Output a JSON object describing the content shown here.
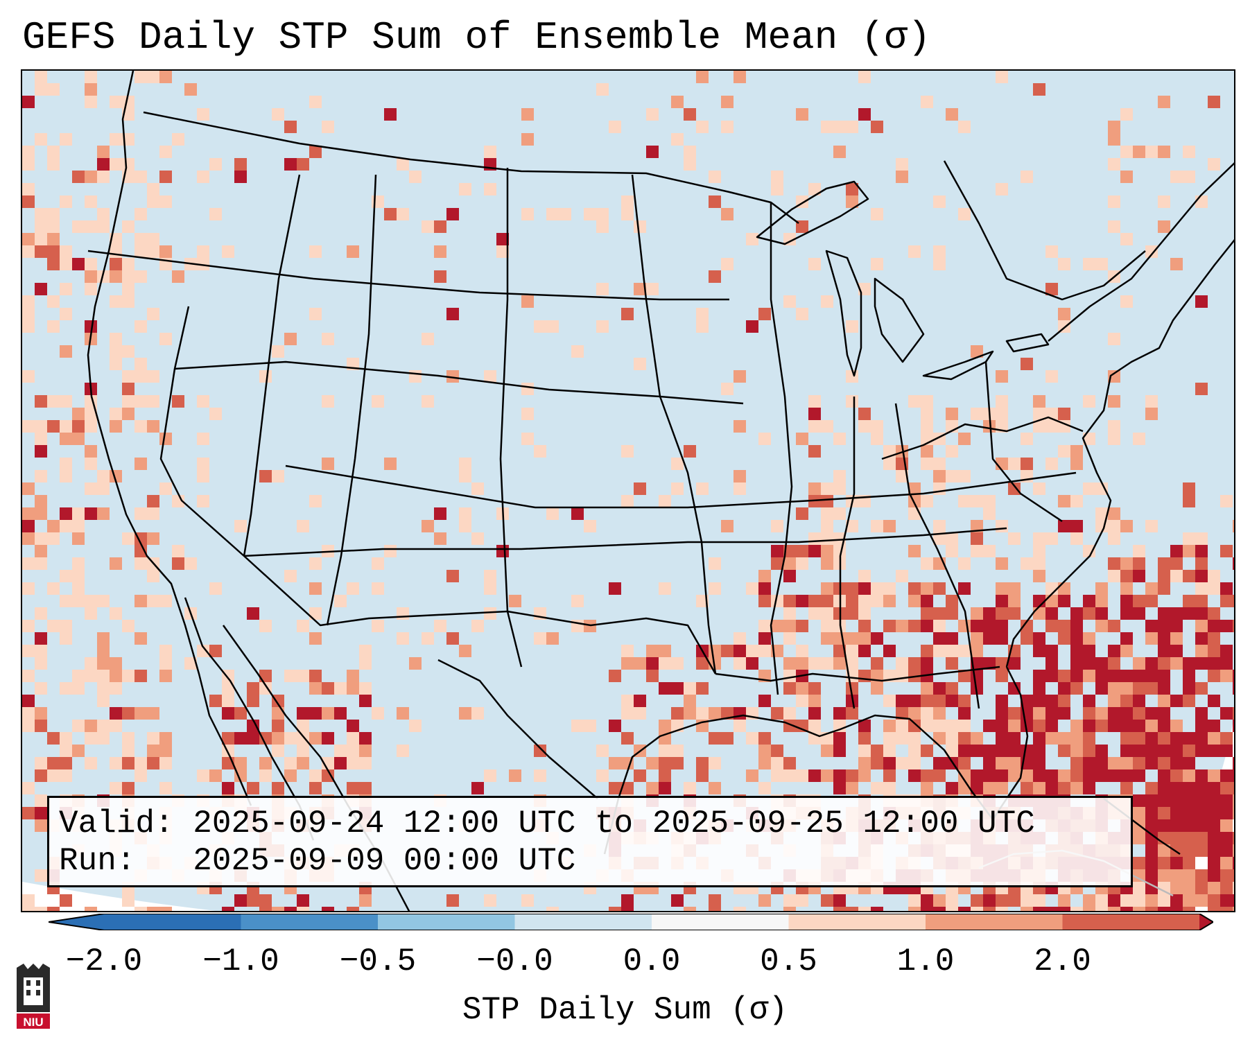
{
  "title": "GEFS Daily STP Sum of Ensemble Mean (σ)",
  "info": {
    "valid_label": "Valid:",
    "valid_value": "2025-09-24 12:00 UTC to 2025-09-25 12:00 UTC",
    "run_label": "Run:",
    "run_value": "2025-09-09 00:00 UTC"
  },
  "colorbar": {
    "label": "STP Daily Sum (σ)",
    "ticks": [
      "−2.0",
      "−1.0",
      "−0.5",
      "−0.0",
      "0.0",
      "0.5",
      "1.0",
      "2.0"
    ],
    "colors": [
      "#2b6fb5",
      "#4a90c8",
      "#92c6e2",
      "#d1e5f0",
      "#f7f7f7",
      "#fcd7c3",
      "#f09e7e",
      "#d6604d",
      "#b2182b"
    ]
  },
  "map": {
    "background_color": "#d1e5f0",
    "ocean_edge_color": "#ffffff",
    "legend_levels": [
      "-2.0",
      "-1.0",
      "-0.5",
      "-0.0",
      "0.0",
      "0.5",
      "1.0",
      "2.0"
    ]
  },
  "logo": {
    "text": "NIU"
  }
}
